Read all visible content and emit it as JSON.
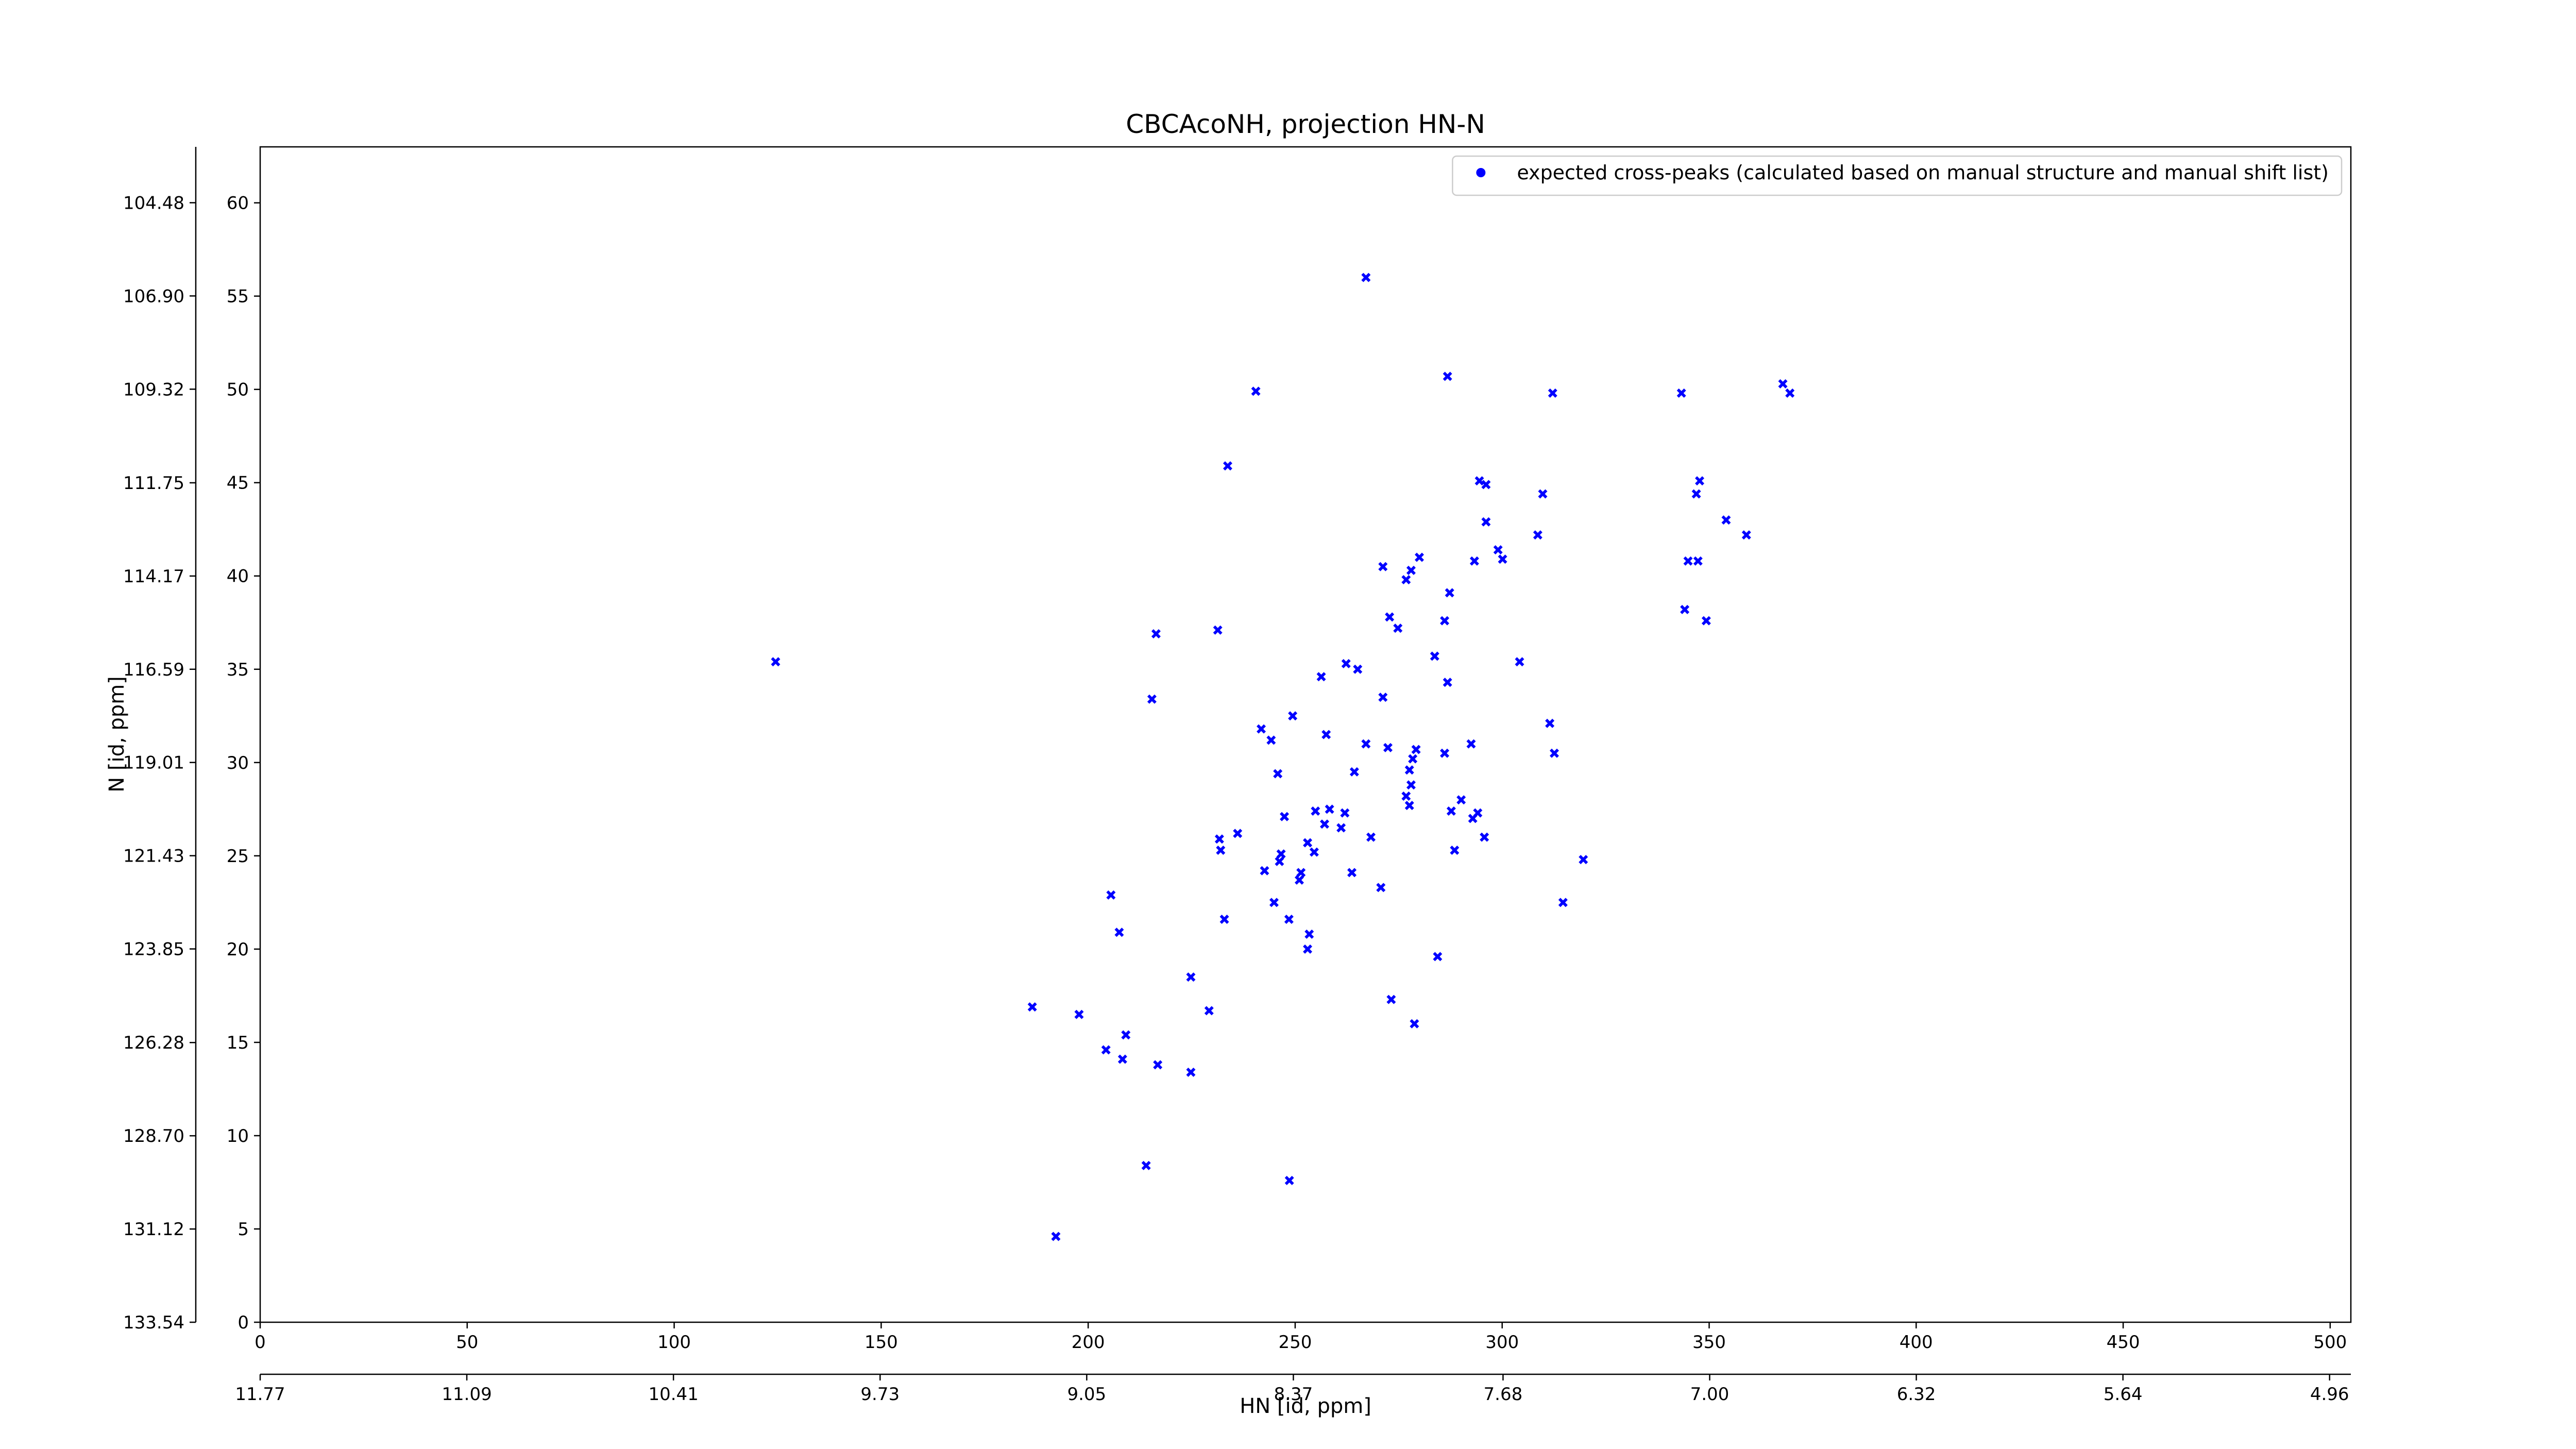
{
  "chart_data": {
    "type": "scatter",
    "title": "CBCAcoNH, projection HN-N",
    "xlabel": "HN [id, ppm]",
    "ylabel": "N [id, ppm]",
    "xlim": [
      0,
      505
    ],
    "ylim": [
      0,
      63
    ],
    "xticks": [
      0,
      50,
      100,
      150,
      200,
      250,
      300,
      350,
      400,
      450,
      500
    ],
    "yticks": [
      0,
      5,
      10,
      15,
      20,
      25,
      30,
      35,
      40,
      45,
      50,
      55,
      60
    ],
    "x2lim": [
      11.77,
      4.89
    ],
    "x2ticks": [
      11.77,
      11.09,
      10.41,
      9.73,
      9.05,
      8.37,
      7.68,
      {
        "value": 7,
        "label": "7.00"
      },
      6.32,
      5.64,
      4.96
    ],
    "y2lim": [
      133.54,
      103.03
    ],
    "y2ticks": [
      133.54,
      131.12,
      {
        "value": 128.7,
        "label": "128.70"
      },
      126.28,
      123.85,
      121.43,
      119.01,
      116.59,
      114.17,
      111.75,
      109.32,
      {
        "value": 106.9,
        "label": "106.90"
      },
      104.48
    ],
    "legend": "upper right",
    "series": [
      {
        "name": "expected cross-peaks (calculated based on manual structure and manual shift list)",
        "color": "#0000ff",
        "x": [
          124.5,
          267.1,
          240.5,
          286.8,
          312.2,
          343.3,
          367.8,
          369.5,
          233.7,
          294.5,
          296.1,
          309.8,
          347.7,
          346.9,
          354.1,
          359.0,
          296.1,
          308.6,
          299.0,
          300.1,
          293.3,
          271.2,
          280.0,
          278.0,
          276.8,
          287.3,
          344.9,
          347.3,
          344.1,
          349.3,
          272.8,
          274.8,
          286.1,
          216.4,
          231.3,
          283.7,
          286.8,
          304.2,
          262.3,
          265.1,
          256.3,
          215.4,
          271.2,
          249.4,
          311.5,
          241.8,
          244.2,
          257.5,
          292.5,
          267.1,
          272.4,
          279.2,
          312.6,
          278.4,
          286.1,
          245.8,
          264.3,
          277.6,
          278.0,
          276.8,
          277.6,
          290.1,
          287.7,
          294.1,
          292.9,
          254.9,
          258.3,
          247.4,
          262.0,
          257.1,
          261.1,
          236.1,
          231.7,
          295.7,
          268.3,
          253.0,
          254.6,
          232.0,
          246.6,
          288.5,
          319.6,
          246.2,
          242.6,
          251.4,
          263.7,
          251.0,
          270.7,
          244.9,
          248.5,
          314.7,
          205.5,
          232.9,
          207.5,
          253.4,
          253.0,
          284.4,
          224.8,
          186.5,
          197.8,
          229.2,
          273.2,
          278.8,
          209.1,
          204.3,
          208.3,
          216.8,
          224.8,
          214.0,
          248.6,
          192.2
        ],
        "y": [
          35.4,
          56.0,
          49.9,
          50.7,
          49.8,
          49.8,
          50.3,
          49.8,
          45.9,
          45.1,
          44.9,
          44.4,
          45.1,
          44.4,
          43.0,
          42.2,
          42.9,
          42.2,
          41.4,
          40.9,
          40.8,
          40.5,
          41.0,
          40.3,
          39.8,
          39.1,
          40.8,
          40.8,
          38.2,
          37.6,
          37.8,
          37.2,
          37.6,
          36.9,
          37.1,
          35.7,
          34.3,
          35.4,
          35.3,
          35.0,
          34.6,
          33.4,
          33.5,
          32.5,
          32.1,
          31.8,
          31.2,
          31.5,
          31.0,
          31.0,
          30.8,
          30.7,
          30.5,
          30.2,
          30.5,
          29.4,
          29.5,
          29.6,
          28.8,
          28.2,
          27.7,
          28.0,
          27.4,
          27.3,
          27.0,
          27.4,
          27.5,
          27.1,
          27.3,
          26.7,
          26.5,
          26.2,
          25.9,
          26.0,
          26.0,
          25.7,
          25.2,
          25.3,
          25.1,
          25.3,
          24.8,
          24.7,
          24.2,
          24.1,
          24.1,
          23.7,
          23.3,
          22.5,
          21.6,
          22.5,
          22.9,
          21.6,
          20.9,
          20.8,
          20.0,
          19.6,
          18.5,
          16.9,
          16.5,
          16.7,
          17.3,
          16.0,
          15.4,
          14.6,
          14.1,
          13.8,
          13.4,
          8.4,
          7.6,
          4.6
        ]
      }
    ]
  }
}
